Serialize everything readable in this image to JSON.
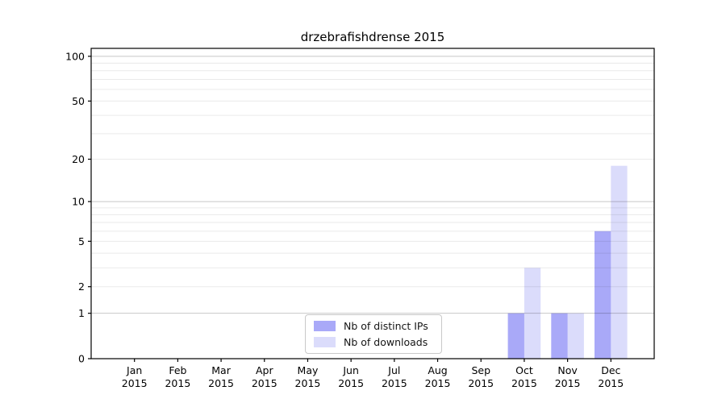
{
  "chart_data": {
    "type": "bar",
    "title": "drzebrafishdrense 2015",
    "categories": [
      "Jan",
      "Feb",
      "Mar",
      "Apr",
      "May",
      "Jun",
      "Jul",
      "Aug",
      "Sep",
      "Oct",
      "Nov",
      "Dec"
    ],
    "category_year": "2015",
    "series": [
      {
        "name": "Nb of distinct IPs",
        "color": "#a9a9f8",
        "values": [
          0,
          0,
          0,
          0,
          0,
          0,
          0,
          0,
          0,
          1,
          1,
          6
        ]
      },
      {
        "name": "Nb of downloads",
        "color": "#dbdcfb",
        "values": [
          0,
          0,
          0,
          0,
          0,
          0,
          0,
          0,
          0,
          3,
          1,
          18
        ]
      }
    ],
    "yscale": "log1p",
    "ylim": [
      0,
      113
    ],
    "yticks": [
      0,
      1,
      2,
      5,
      10,
      20,
      50,
      100
    ],
    "major_gridlines": [
      1,
      10,
      100
    ],
    "minor_gridlines": [
      2,
      3,
      4,
      5,
      6,
      7,
      8,
      9,
      20,
      30,
      40,
      50,
      60,
      70,
      80,
      90
    ],
    "grid": true,
    "legend_position": "inside-bottom-center",
    "xlabel": "",
    "ylabel": ""
  },
  "legend": {
    "items": [
      {
        "label": "Nb of distinct IPs"
      },
      {
        "label": "Nb of downloads"
      }
    ]
  },
  "colors": {
    "background": "#ffffff",
    "spine": "#000000",
    "major_grid": "#c8c8c8",
    "minor_grid": "#eaeaea",
    "tick_text": "#000000",
    "bar_distinct_ips": "#a9a9f8",
    "bar_downloads": "#dbdcfb"
  }
}
